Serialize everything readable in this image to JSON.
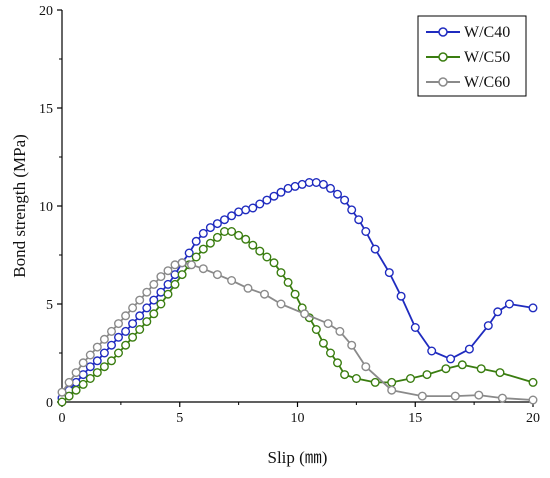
{
  "chart_data": {
    "type": "line",
    "title": "",
    "xlabel": "Slip (㎜)",
    "ylabel": "Bond strength (MPa)",
    "xlim": [
      0,
      20
    ],
    "ylim": [
      0,
      20
    ],
    "xticks": [
      0,
      5,
      10,
      15,
      20
    ],
    "yticks": [
      0,
      5,
      10,
      15,
      20
    ],
    "x_tick_labels": [
      "0",
      "5",
      "10",
      "15",
      "20"
    ],
    "y_tick_labels": [
      "0",
      "5",
      "10",
      "15",
      "20"
    ],
    "grid": false,
    "legend_position": "top-right",
    "series": [
      {
        "name": "W/C40",
        "color": "#1f2bbf",
        "marker": "open-circle",
        "x": [
          0.0,
          0.3,
          0.6,
          0.9,
          1.2,
          1.5,
          1.8,
          2.1,
          2.4,
          2.7,
          3.0,
          3.3,
          3.6,
          3.9,
          4.2,
          4.5,
          4.8,
          5.1,
          5.4,
          5.7,
          6.0,
          6.3,
          6.6,
          6.9,
          7.2,
          7.5,
          7.8,
          8.1,
          8.4,
          8.7,
          9.0,
          9.3,
          9.6,
          9.9,
          10.2,
          10.5,
          10.8,
          11.1,
          11.4,
          11.7,
          12.0,
          12.3,
          12.6,
          12.9,
          13.3,
          13.9,
          14.4,
          15.0,
          15.7,
          16.5,
          17.3,
          18.1,
          18.5,
          19.0,
          20.0
        ],
        "y": [
          0.2,
          0.6,
          1.0,
          1.4,
          1.8,
          2.1,
          2.5,
          2.9,
          3.3,
          3.6,
          4.0,
          4.4,
          4.8,
          5.2,
          5.6,
          6.0,
          6.5,
          7.1,
          7.6,
          8.2,
          8.6,
          8.9,
          9.1,
          9.3,
          9.5,
          9.7,
          9.8,
          9.9,
          10.1,
          10.3,
          10.5,
          10.7,
          10.9,
          11.0,
          11.1,
          11.2,
          11.2,
          11.1,
          10.9,
          10.6,
          10.3,
          9.8,
          9.3,
          8.7,
          7.8,
          6.6,
          5.4,
          3.8,
          2.6,
          2.2,
          2.7,
          3.9,
          4.6,
          5.0,
          4.8
        ]
      },
      {
        "name": "W/C50",
        "color": "#3a7d10",
        "marker": "open-circle",
        "x": [
          0.0,
          0.3,
          0.6,
          0.9,
          1.2,
          1.5,
          1.8,
          2.1,
          2.4,
          2.7,
          3.0,
          3.3,
          3.6,
          3.9,
          4.2,
          4.5,
          4.8,
          5.1,
          5.4,
          5.7,
          6.0,
          6.3,
          6.6,
          6.9,
          7.2,
          7.5,
          7.8,
          8.1,
          8.4,
          8.7,
          9.0,
          9.3,
          9.6,
          9.9,
          10.2,
          10.5,
          10.8,
          11.1,
          11.4,
          11.7,
          12.0,
          12.5,
          13.3,
          14.0,
          14.8,
          15.5,
          16.3,
          17.0,
          17.8,
          18.6,
          20.0
        ],
        "y": [
          0.0,
          0.3,
          0.6,
          0.9,
          1.2,
          1.5,
          1.8,
          2.1,
          2.5,
          2.9,
          3.3,
          3.7,
          4.1,
          4.5,
          5.0,
          5.5,
          6.0,
          6.5,
          7.0,
          7.4,
          7.8,
          8.1,
          8.4,
          8.7,
          8.7,
          8.5,
          8.3,
          8.0,
          7.7,
          7.4,
          7.1,
          6.6,
          6.1,
          5.5,
          4.8,
          4.3,
          3.7,
          3.0,
          2.5,
          2.0,
          1.4,
          1.2,
          1.0,
          1.0,
          1.2,
          1.4,
          1.7,
          1.9,
          1.7,
          1.5,
          1.0
        ]
      },
      {
        "name": "W/C60",
        "color": "#8a8a8a",
        "marker": "open-circle",
        "x": [
          0.0,
          0.3,
          0.6,
          0.9,
          1.2,
          1.5,
          1.8,
          2.1,
          2.4,
          2.7,
          3.0,
          3.3,
          3.6,
          3.9,
          4.2,
          4.5,
          4.8,
          5.1,
          5.5,
          6.0,
          6.6,
          7.2,
          7.9,
          8.6,
          9.3,
          10.3,
          11.3,
          11.8,
          12.3,
          12.9,
          14.0,
          15.3,
          16.7,
          17.7,
          18.7,
          20.0
        ],
        "y": [
          0.5,
          1.0,
          1.5,
          2.0,
          2.4,
          2.8,
          3.2,
          3.6,
          4.0,
          4.4,
          4.8,
          5.2,
          5.6,
          6.0,
          6.4,
          6.7,
          7.0,
          7.1,
          7.0,
          6.8,
          6.5,
          6.2,
          5.8,
          5.5,
          5.0,
          4.5,
          4.0,
          3.6,
          2.9,
          1.8,
          0.6,
          0.3,
          0.3,
          0.35,
          0.2,
          0.1
        ]
      }
    ]
  }
}
